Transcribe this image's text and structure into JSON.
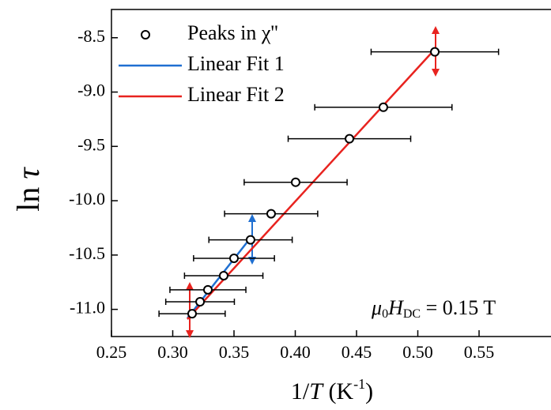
{
  "chart_data": {
    "type": "scatter",
    "x_label": [
      "1/",
      "T",
      " (K",
      "-1",
      ")"
    ],
    "y_label": [
      "ln ",
      "τ"
    ],
    "annotation": [
      "μ",
      "0",
      "H",
      "DC",
      " = 0.15 T"
    ],
    "xlim": [
      0.25,
      0.6087
    ],
    "ylim": [
      -11.25,
      -8.24
    ],
    "xticks": [
      {
        "value": 0.25,
        "label": "0.25"
      },
      {
        "value": 0.3,
        "label": "0.30"
      },
      {
        "value": 0.35,
        "label": "0.35"
      },
      {
        "value": 0.4,
        "label": "0.40"
      },
      {
        "value": 0.45,
        "label": "0.45"
      },
      {
        "value": 0.5,
        "label": "0.50"
      },
      {
        "value": 0.55,
        "label": "0.55"
      }
    ],
    "yticks": [
      {
        "value": -8.5,
        "label": "-8.5"
      },
      {
        "value": -9.0,
        "label": "-9.0"
      },
      {
        "value": -9.5,
        "label": "-9.5"
      },
      {
        "value": -10.0,
        "label": "-10.0"
      },
      {
        "value": -10.5,
        "label": "-10.5"
      },
      {
        "value": -11.0,
        "label": "-11.0"
      }
    ],
    "series": [
      {
        "name": "Peaks in χ''",
        "type": "scatter",
        "color": "#000000",
        "x": [
          0.3158,
          0.3223,
          0.3287,
          0.3416,
          0.35,
          0.3635,
          0.3803,
          0.4003,
          0.4442,
          0.4719,
          0.5139
        ],
        "values": [
          -11.04,
          -10.93,
          -10.82,
          -10.69,
          -10.53,
          -10.36,
          -10.12,
          -9.83,
          -9.43,
          -9.14,
          -8.63
        ],
        "xerr": [
          0.027,
          0.028,
          0.031,
          0.032,
          0.033,
          0.034,
          0.038,
          0.042,
          0.05,
          0.056,
          0.052
        ]
      },
      {
        "name": "Linear Fit 1",
        "type": "line",
        "color": "#1f6fd1",
        "x": [
          0.312,
          0.365
        ],
        "values": [
          -11.08,
          -10.32
        ]
      },
      {
        "name": "Linear Fit 2",
        "type": "line",
        "color": "#e8231f",
        "x": [
          0.3119,
          0.5152
        ],
        "values": [
          -11.09,
          -8.59
        ]
      }
    ]
  }
}
